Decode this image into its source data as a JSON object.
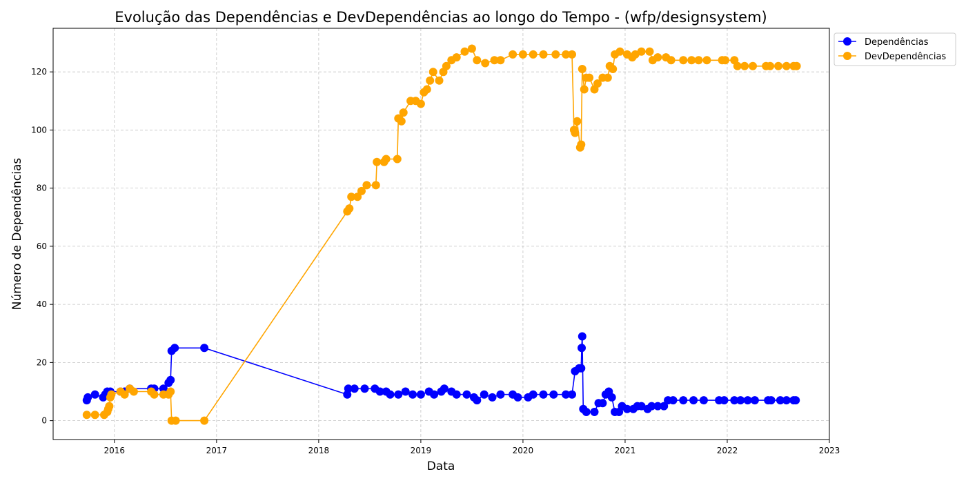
{
  "chart_data": {
    "type": "line",
    "title": "Evolução das Dependências e DevDependências ao longo do Tempo - (wfp/designsystem)",
    "xlabel": "Data",
    "ylabel": "Número de Dependências",
    "xlim": [
      2015.4,
      2023.0
    ],
    "ylim": [
      -6.5,
      135
    ],
    "x_ticks": [
      2016,
      2017,
      2018,
      2019,
      2020,
      2021,
      2022,
      2023
    ],
    "x_tick_labels": [
      "2016",
      "2017",
      "2018",
      "2019",
      "2020",
      "2021",
      "2022",
      "2023"
    ],
    "y_ticks": [
      0,
      20,
      40,
      60,
      80,
      100,
      120
    ],
    "y_tick_labels": [
      "0",
      "20",
      "40",
      "60",
      "80",
      "100",
      "120"
    ],
    "grid": true,
    "legend_position": "outside-top-right",
    "series": [
      {
        "name": "Dependências",
        "color": "#0000ff",
        "points": [
          [
            2015.73,
            7
          ],
          [
            2015.74,
            8
          ],
          [
            2015.81,
            9
          ],
          [
            2015.89,
            8
          ],
          [
            2015.91,
            9
          ],
          [
            2015.93,
            10
          ],
          [
            2015.96,
            10
          ],
          [
            2016.06,
            10
          ],
          [
            2016.1,
            10
          ],
          [
            2016.15,
            11
          ],
          [
            2016.36,
            11
          ],
          [
            2016.39,
            11
          ],
          [
            2016.48,
            11
          ],
          [
            2016.53,
            13
          ],
          [
            2016.55,
            14
          ],
          [
            2016.56,
            24
          ],
          [
            2016.59,
            25
          ],
          [
            2016.88,
            25
          ],
          [
            2018.28,
            9
          ],
          [
            2018.29,
            11
          ],
          [
            2018.35,
            11
          ],
          [
            2018.45,
            11
          ],
          [
            2018.55,
            11
          ],
          [
            2018.6,
            10
          ],
          [
            2018.66,
            10
          ],
          [
            2018.7,
            9
          ],
          [
            2018.78,
            9
          ],
          [
            2018.85,
            10
          ],
          [
            2018.92,
            9
          ],
          [
            2019.0,
            9
          ],
          [
            2019.08,
            10
          ],
          [
            2019.13,
            9
          ],
          [
            2019.2,
            10
          ],
          [
            2019.23,
            11
          ],
          [
            2019.3,
            10
          ],
          [
            2019.35,
            9
          ],
          [
            2019.45,
            9
          ],
          [
            2019.52,
            8
          ],
          [
            2019.55,
            7
          ],
          [
            2019.62,
            9
          ],
          [
            2019.7,
            8
          ],
          [
            2019.78,
            9
          ],
          [
            2019.9,
            9
          ],
          [
            2019.95,
            8
          ],
          [
            2020.05,
            8
          ],
          [
            2020.1,
            9
          ],
          [
            2020.2,
            9
          ],
          [
            2020.3,
            9
          ],
          [
            2020.42,
            9
          ],
          [
            2020.48,
            9
          ],
          [
            2020.51,
            17
          ],
          [
            2020.55,
            18
          ],
          [
            2020.57,
            18
          ],
          [
            2020.575,
            25
          ],
          [
            2020.58,
            29
          ],
          [
            2020.59,
            4
          ],
          [
            2020.62,
            3
          ],
          [
            2020.7,
            3
          ],
          [
            2020.74,
            6
          ],
          [
            2020.78,
            6
          ],
          [
            2020.81,
            9
          ],
          [
            2020.84,
            10
          ],
          [
            2020.87,
            8
          ],
          [
            2020.9,
            3
          ],
          [
            2020.94,
            3
          ],
          [
            2020.97,
            5
          ],
          [
            2021.02,
            4
          ],
          [
            2021.08,
            4
          ],
          [
            2021.12,
            5
          ],
          [
            2021.16,
            5
          ],
          [
            2021.22,
            4
          ],
          [
            2021.26,
            5
          ],
          [
            2021.32,
            5
          ],
          [
            2021.38,
            5
          ],
          [
            2021.42,
            7
          ],
          [
            2021.47,
            7
          ],
          [
            2021.57,
            7
          ],
          [
            2021.67,
            7
          ],
          [
            2021.77,
            7
          ],
          [
            2021.92,
            7
          ],
          [
            2021.97,
            7
          ],
          [
            2022.07,
            7
          ],
          [
            2022.13,
            7
          ],
          [
            2022.2,
            7
          ],
          [
            2022.27,
            7
          ],
          [
            2022.4,
            7
          ],
          [
            2022.43,
            7
          ],
          [
            2022.52,
            7
          ],
          [
            2022.58,
            7
          ],
          [
            2022.65,
            7
          ],
          [
            2022.67,
            7
          ]
        ]
      },
      {
        "name": "DevDependências",
        "color": "#ffa500",
        "points": [
          [
            2015.73,
            2
          ],
          [
            2015.81,
            2
          ],
          [
            2015.9,
            2
          ],
          [
            2015.93,
            3
          ],
          [
            2015.94,
            4
          ],
          [
            2015.95,
            5
          ],
          [
            2015.96,
            8
          ],
          [
            2015.97,
            9
          ],
          [
            2016.06,
            10
          ],
          [
            2016.1,
            9
          ],
          [
            2016.15,
            11
          ],
          [
            2016.19,
            10
          ],
          [
            2016.36,
            10
          ],
          [
            2016.39,
            9
          ],
          [
            2016.48,
            9
          ],
          [
            2016.53,
            9
          ],
          [
            2016.55,
            10
          ],
          [
            2016.56,
            0
          ],
          [
            2016.6,
            0
          ],
          [
            2016.88,
            0
          ],
          [
            2018.28,
            72
          ],
          [
            2018.3,
            73
          ],
          [
            2018.32,
            77
          ],
          [
            2018.38,
            77
          ],
          [
            2018.42,
            79
          ],
          [
            2018.47,
            81
          ],
          [
            2018.56,
            81
          ],
          [
            2018.57,
            89
          ],
          [
            2018.64,
            89
          ],
          [
            2018.66,
            90
          ],
          [
            2018.77,
            90
          ],
          [
            2018.78,
            104
          ],
          [
            2018.81,
            103
          ],
          [
            2018.83,
            106
          ],
          [
            2018.9,
            110
          ],
          [
            2018.95,
            110
          ],
          [
            2019.0,
            109
          ],
          [
            2019.03,
            113
          ],
          [
            2019.06,
            114
          ],
          [
            2019.09,
            117
          ],
          [
            2019.12,
            120
          ],
          [
            2019.18,
            117
          ],
          [
            2019.22,
            120
          ],
          [
            2019.25,
            122
          ],
          [
            2019.3,
            124
          ],
          [
            2019.35,
            125
          ],
          [
            2019.43,
            127
          ],
          [
            2019.5,
            128
          ],
          [
            2019.55,
            124
          ],
          [
            2019.63,
            123
          ],
          [
            2019.72,
            124
          ],
          [
            2019.78,
            124
          ],
          [
            2019.9,
            126
          ],
          [
            2020.0,
            126
          ],
          [
            2020.1,
            126
          ],
          [
            2020.2,
            126
          ],
          [
            2020.32,
            126
          ],
          [
            2020.42,
            126
          ],
          [
            2020.48,
            126
          ],
          [
            2020.5,
            100
          ],
          [
            2020.51,
            99
          ],
          [
            2020.53,
            103
          ],
          [
            2020.56,
            94
          ],
          [
            2020.57,
            95
          ],
          [
            2020.58,
            121
          ],
          [
            2020.6,
            114
          ],
          [
            2020.62,
            118
          ],
          [
            2020.65,
            118
          ],
          [
            2020.7,
            114
          ],
          [
            2020.73,
            116
          ],
          [
            2020.78,
            118
          ],
          [
            2020.83,
            118
          ],
          [
            2020.85,
            122
          ],
          [
            2020.88,
            121
          ],
          [
            2020.9,
            126
          ],
          [
            2020.95,
            127
          ],
          [
            2021.02,
            126
          ],
          [
            2021.07,
            125
          ],
          [
            2021.1,
            126
          ],
          [
            2021.16,
            127
          ],
          [
            2021.24,
            127
          ],
          [
            2021.27,
            124
          ],
          [
            2021.32,
            125
          ],
          [
            2021.4,
            125
          ],
          [
            2021.45,
            124
          ],
          [
            2021.57,
            124
          ],
          [
            2021.65,
            124
          ],
          [
            2021.72,
            124
          ],
          [
            2021.8,
            124
          ],
          [
            2021.95,
            124
          ],
          [
            2021.98,
            124
          ],
          [
            2022.07,
            124
          ],
          [
            2022.1,
            122
          ],
          [
            2022.17,
            122
          ],
          [
            2022.25,
            122
          ],
          [
            2022.38,
            122
          ],
          [
            2022.42,
            122
          ],
          [
            2022.5,
            122
          ],
          [
            2022.58,
            122
          ],
          [
            2022.65,
            122
          ],
          [
            2022.68,
            122
          ]
        ]
      }
    ]
  }
}
